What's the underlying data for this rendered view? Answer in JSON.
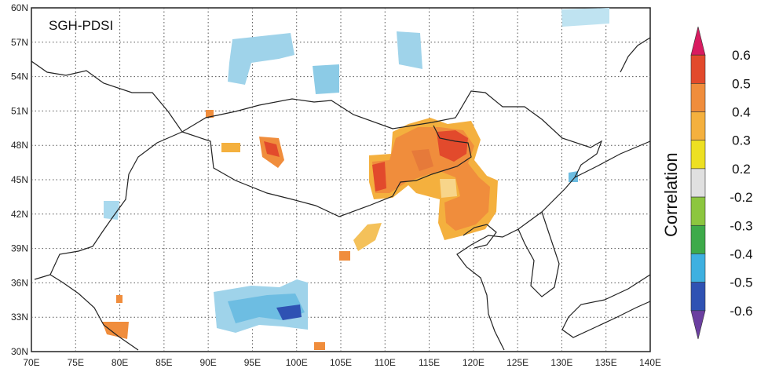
{
  "map": {
    "title": "SGH-PDSI",
    "lat_labels": [
      "60N",
      "57N",
      "54N",
      "51N",
      "48N",
      "45N",
      "42N",
      "39N",
      "36N",
      "33N",
      "30N"
    ],
    "lon_labels": [
      "70E",
      "75E",
      "80E",
      "85E",
      "90E",
      "95E",
      "100E",
      "105E",
      "110E",
      "115E",
      "120E",
      "125E",
      "130E",
      "135E",
      "140E"
    ],
    "extent": {
      "lon": [
        70,
        140
      ],
      "lat": [
        30,
        60
      ]
    }
  },
  "colorbar": {
    "label": "Correlation",
    "levels": [
      "0.6",
      "0.5",
      "0.4",
      "0.3",
      "0.2",
      "-0.2",
      "-0.3",
      "-0.4",
      "-0.5",
      "-0.6"
    ],
    "colors": [
      "#d81b60",
      "#e24a2c",
      "#f08d3c",
      "#f4b03e",
      "#ede022",
      "#e0e0e0",
      "#8cc63f",
      "#3daa4a",
      "#3eb0e0",
      "#2f52b3",
      "#6b3fa0"
    ]
  },
  "patches": [
    {
      "region": "Mongolia-north-China",
      "sign": "positive",
      "level": "0.4-0.5"
    },
    {
      "region": "Tibetan Plateau",
      "sign": "negative",
      "level": "-0.5"
    },
    {
      "region": "South Siberia",
      "sign": "negative",
      "level": "-0.3"
    }
  ]
}
